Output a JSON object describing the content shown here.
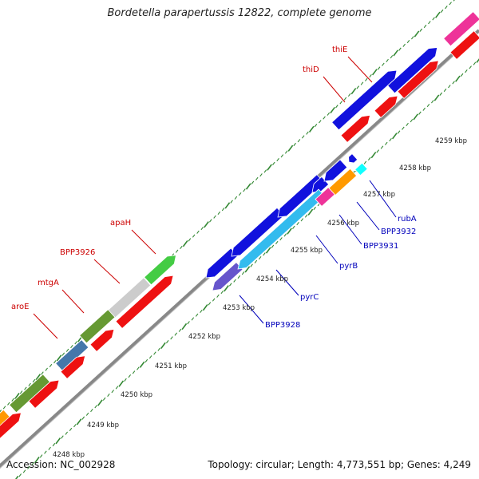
{
  "title": "Bordetella parapertussis 12822, complete genome",
  "footer": {
    "accession": "Accession: NC_002928",
    "summary": "Topology: circular; Length: 4,773,551 bp; Genes: 4,249"
  },
  "colors": {
    "red_gene": "#ee1111",
    "blue_gene": "#1111dd",
    "backbone": "#888888",
    "tick": "#338833",
    "label_red": "#cc0000",
    "label_blue": "#0000bb"
  },
  "scale_labels": [
    "4248 kbp",
    "4249 kbp",
    "4250 kbp",
    "4251 kbp",
    "4252 kbp",
    "4253 kbp",
    "4254 kbp",
    "4255 kbp",
    "4256 kbp",
    "4257 kbp",
    "4258 kbp",
    "4259 kbp"
  ],
  "labels_top": [
    {
      "text": "aroE"
    },
    {
      "text": "mtgA"
    },
    {
      "text": "BPP3926"
    },
    {
      "text": "apaH"
    },
    {
      "text": "thiD"
    },
    {
      "text": "thiE"
    }
  ],
  "labels_bottom": [
    {
      "text": "BPP3928"
    },
    {
      "text": "pyrC"
    },
    {
      "text": "pyrB"
    },
    {
      "text": "BPP3931"
    },
    {
      "text": "BPP3932"
    },
    {
      "text": "rubA"
    }
  ]
}
